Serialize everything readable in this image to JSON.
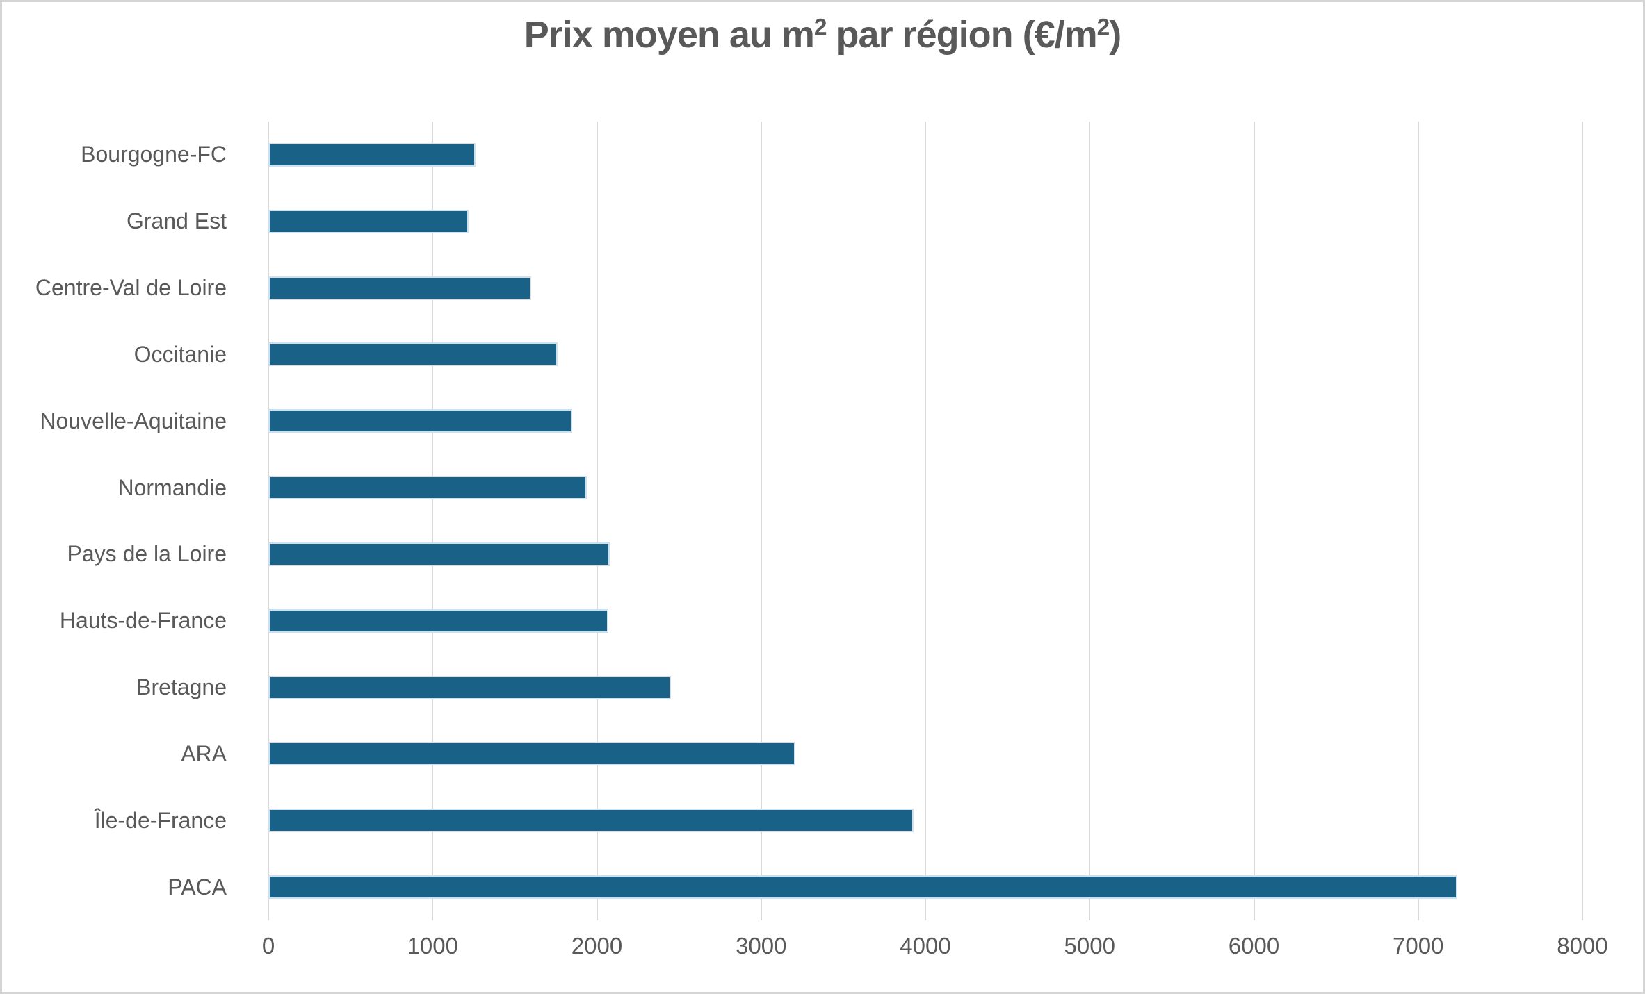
{
  "chart_data": {
    "type": "bar",
    "orientation": "horizontal",
    "title": "Prix moyen au m² par région (€/m²)",
    "title_parts": [
      "Prix moyen au m",
      "2",
      " par région (€/m",
      "2",
      ")"
    ],
    "categories": [
      "Bourgogne-FC",
      "Grand Est",
      "Centre-Val de Loire",
      "Occitanie",
      "Nouvelle-Aquitaine",
      "Normandie",
      "Pays de la Loire",
      "Hauts-de-France",
      "Bretagne",
      "ARA",
      "Île-de-France",
      "PACA"
    ],
    "values": [
      1260,
      1220,
      1600,
      1760,
      1850,
      1940,
      2080,
      2070,
      2450,
      3210,
      3930,
      7240
    ],
    "xlabel": "",
    "ylabel": "",
    "xlim": [
      0,
      8000
    ],
    "x_ticks": [
      0,
      1000,
      2000,
      3000,
      4000,
      5000,
      6000,
      7000,
      8000
    ],
    "grid": true,
    "legend": false,
    "bar_color": "#196186",
    "text_color": "#595959",
    "gridline_color": "#d9d9d9"
  }
}
